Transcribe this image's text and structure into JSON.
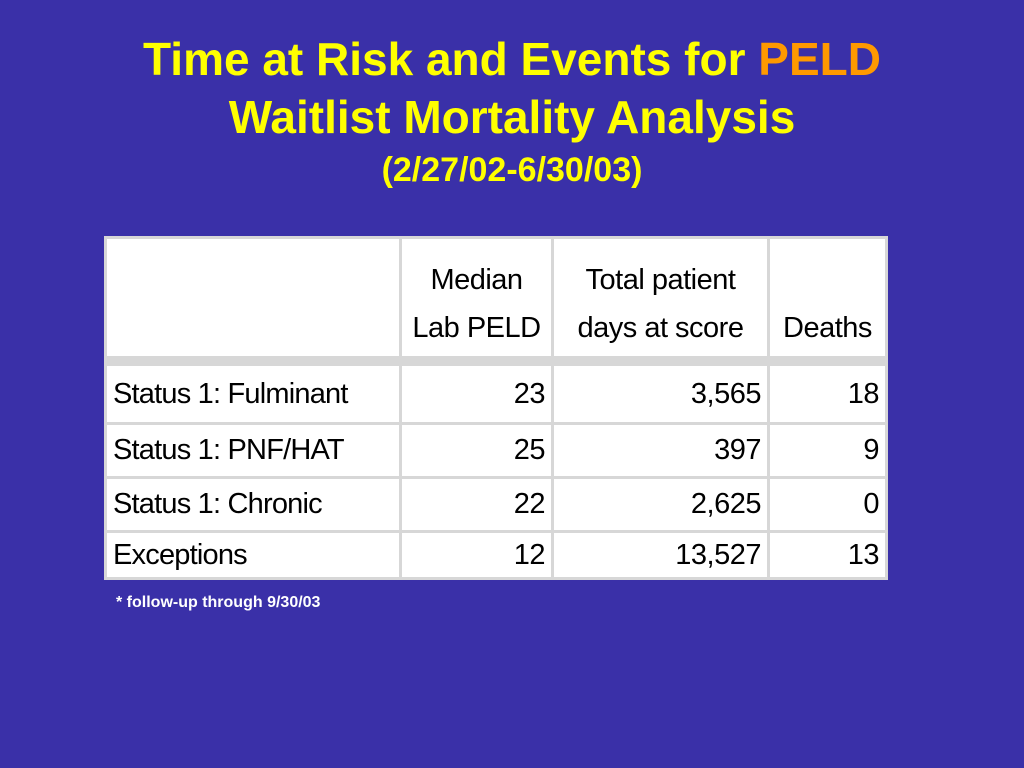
{
  "title": {
    "line1_prefix": "Time at Risk and Events for ",
    "line1_accent": "PELD",
    "line2": "Waitlist Mortality Analysis",
    "line3": "(2/27/02-6/30/03)"
  },
  "table": {
    "headers": {
      "median_line1": "Median",
      "median_line2": "Lab PELD",
      "days_line1": "Total patient",
      "days_line2": "days at score",
      "deaths": "Deaths"
    },
    "rows": [
      {
        "label": "Status 1: Fulminant",
        "median": "23",
        "days": "3,565",
        "deaths": "18"
      },
      {
        "label": "Status 1: PNF/HAT",
        "median": "25",
        "days": "397",
        "deaths": "9"
      },
      {
        "label": "Status 1: Chronic",
        "median": "22",
        "days": "2,625",
        "deaths": "0"
      },
      {
        "label": "Exceptions",
        "median": "12",
        "days": "13,527",
        "deaths": "13"
      }
    ]
  },
  "footnote": "* follow-up through 9/30/03",
  "colors": {
    "background": "#3a30a8",
    "title": "#ffff00",
    "accent": "#ff9900",
    "table_grid": "#d7d7d7"
  }
}
